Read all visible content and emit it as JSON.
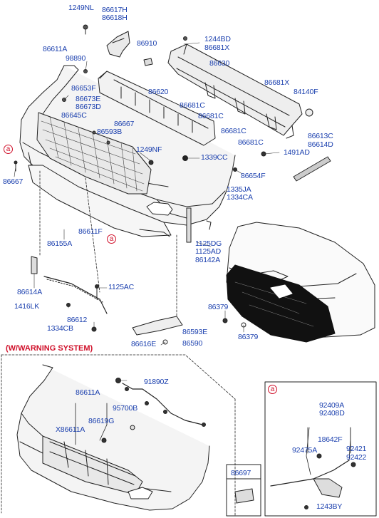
{
  "warning_title": "(W/WARNING SYSTEM)",
  "callout_letter": "a",
  "labels": {
    "p1249NL": "1249NL",
    "p86617H": "86617H",
    "p86618H": "86618H",
    "p1244BD": "1244BD",
    "p86681X_a": "86681X",
    "p86611A_top": "86611A",
    "p86910": "86910",
    "p98890": "98890",
    "p86630": "86630",
    "p86681X_b": "86681X",
    "p84140F": "84140F",
    "p86653F": "86653F",
    "p86673E": "86673E",
    "p86673D": "86673D",
    "p86645C": "86645C",
    "p86620": "86620",
    "p86681C_a": "86681C",
    "p86681C_b": "86681C",
    "p86681C_c": "86681C",
    "p86681C_d": "86681C",
    "p86667_a": "86667",
    "p86593B": "86593B",
    "p86613C": "86613C",
    "p86614D": "86614D",
    "p1249NF": "1249NF",
    "p1339CC": "1339CC",
    "p1491AD": "1491AD",
    "p86667_b": "86667",
    "p86654F": "86654F",
    "p1335JA": "1335JA",
    "p1334CA_a": "1334CA",
    "p86611F": "86611F",
    "p86155A": "86155A",
    "p1125DG": "1125DG",
    "p1125AD": "1125AD",
    "p86142A": "86142A",
    "p86614A": "86614A",
    "p1125AC": "1125AC",
    "p1416LK": "1416LK",
    "p86612": "86612",
    "p1334CB": "1334CB",
    "p86379_a": "86379",
    "p86593E": "86593E",
    "p86379_b": "86379",
    "p86616E": "86616E",
    "p86590": "86590",
    "p91890Z": "91890Z",
    "p86611A_w": "86611A",
    "p95700B": "95700B",
    "p86619G": "86619G",
    "pX86611A": "X86611A",
    "p92409A": "92409A",
    "p92408D": "92408D",
    "p18642F": "18642F",
    "p92475A": "92475A",
    "p92421": "92421",
    "p92422": "92422",
    "p86697": "86697",
    "p1243BY": "1243BY"
  }
}
